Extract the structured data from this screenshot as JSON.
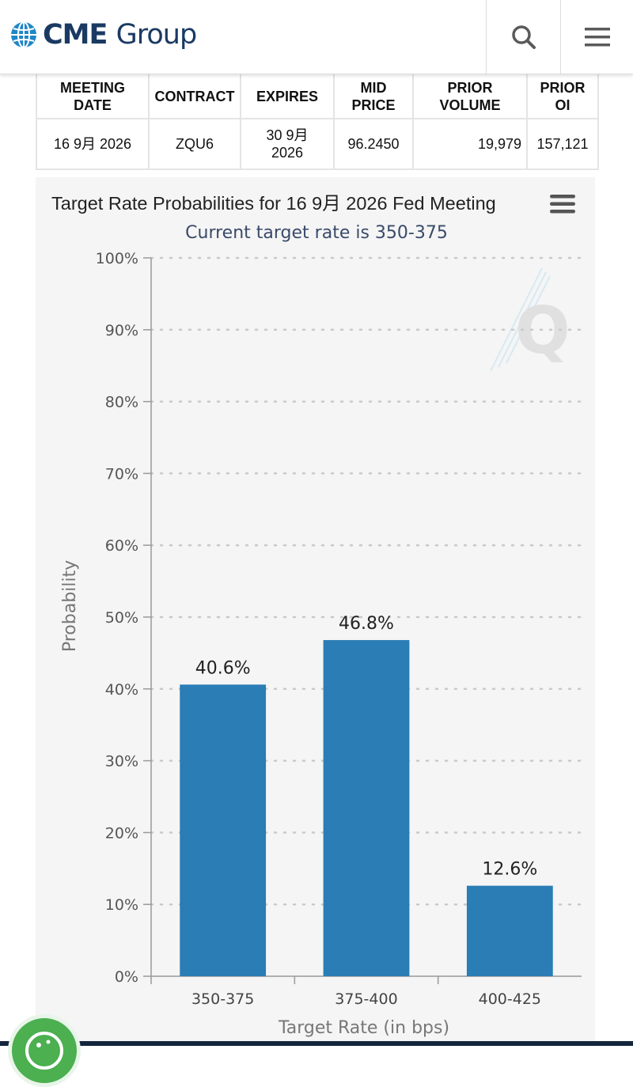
{
  "header": {
    "logo_text_bold": "CME",
    "logo_text_light": "Group",
    "search_icon": "search-icon",
    "menu_icon": "hamburger-menu-icon"
  },
  "table": {
    "headers": [
      {
        "line1": "MEETING",
        "line2": "DATE"
      },
      {
        "line1": "CONTRACT",
        "line2": ""
      },
      {
        "line1": "EXPIRES",
        "line2": ""
      },
      {
        "line1": "MID",
        "line2": "PRICE"
      },
      {
        "line1": "PRIOR",
        "line2": "VOLUME"
      },
      {
        "line1": "PRIOR",
        "line2": "OI"
      }
    ],
    "row": {
      "meeting_date": "16 9月 2026",
      "contract": "ZQU6",
      "expires_line1": "30 9月",
      "expires_line2": "2026",
      "mid_price": "96.2450",
      "prior_volume": "19,979",
      "prior_oi": "157,121"
    }
  },
  "chart": {
    "menu_icon": "chart-context-menu-icon",
    "watermark_icon": "quikstrike-q-watermark-icon"
  },
  "chart_data": {
    "type": "bar",
    "title": "Target Rate Probabilities for 16 9月 2026 Fed Meeting",
    "subtitle": "Current target rate is 350-375",
    "xlabel": "Target Rate (in bps)",
    "ylabel": "Probability",
    "categories": [
      "350-375",
      "375-400",
      "400-425"
    ],
    "values": [
      40.6,
      46.8,
      12.6
    ],
    "data_labels": [
      "40.6%",
      "46.8%",
      "12.6%"
    ],
    "ylim": [
      0,
      100
    ],
    "yticks": [
      0,
      10,
      20,
      30,
      40,
      50,
      60,
      70,
      80,
      90,
      100
    ],
    "ytick_labels": [
      "0%",
      "10%",
      "20%",
      "30%",
      "40%",
      "50%",
      "60%",
      "70%",
      "80%",
      "90%",
      "100%"
    ],
    "grid": true,
    "legend": "none",
    "bar_color": "#2a7db5"
  },
  "footer": {
    "cookie_icon": "cookie-settings-icon"
  }
}
